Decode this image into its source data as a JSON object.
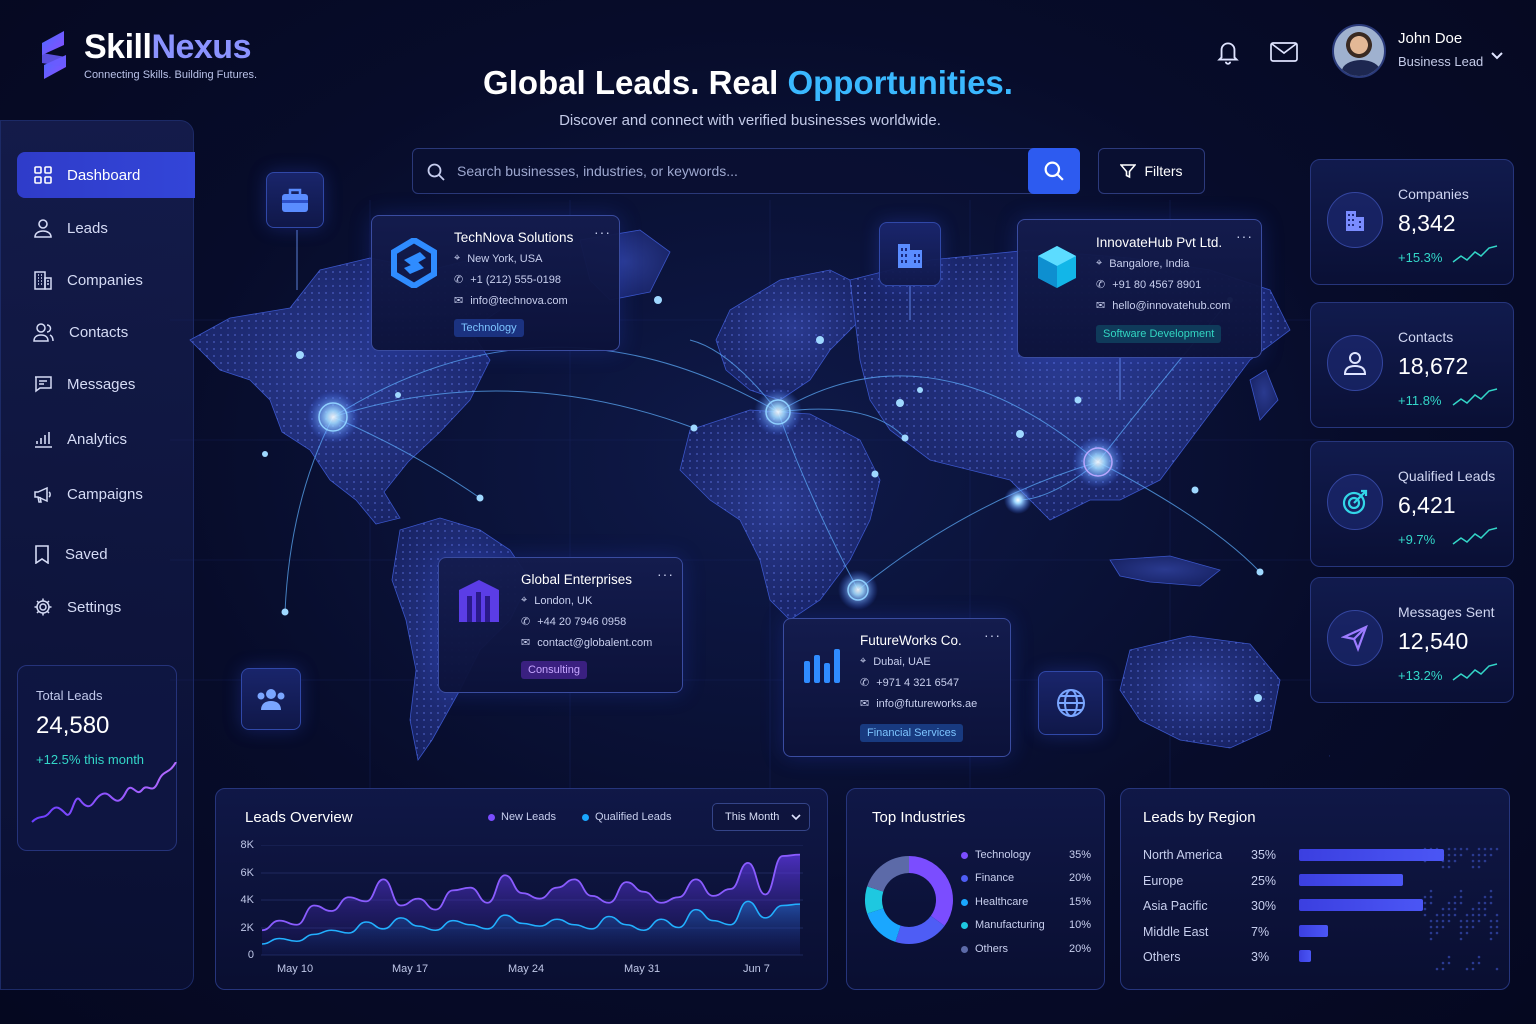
{
  "brand": {
    "name_part1": "Skill",
    "name_part2": "Nexus",
    "tagline": "Connecting Skills. Building Futures."
  },
  "hero": {
    "title_main": "Global Leads. Real ",
    "title_accent": "Opportunities.",
    "subtitle": "Discover and connect with verified businesses worldwide."
  },
  "user": {
    "name": "John Doe",
    "role": "Business Lead"
  },
  "search": {
    "placeholder": "Search businesses, industries, or keywords...",
    "filters_label": "Filters"
  },
  "sidebar": {
    "items": [
      {
        "label": "Dashboard",
        "icon": "grid-icon",
        "active": true
      },
      {
        "label": "Leads",
        "icon": "user-icon"
      },
      {
        "label": "Companies",
        "icon": "building-icon"
      },
      {
        "label": "Contacts",
        "icon": "contacts-icon"
      },
      {
        "label": "Messages",
        "icon": "message-icon"
      },
      {
        "label": "Analytics",
        "icon": "bar-chart-icon"
      },
      {
        "label": "Campaigns",
        "icon": "megaphone-icon"
      },
      {
        "label": "Saved",
        "icon": "bookmark-icon"
      },
      {
        "label": "Settings",
        "icon": "gear-icon"
      }
    ],
    "total_leads": {
      "label": "Total Leads",
      "value": "24,580",
      "delta": "+12.5% this month"
    }
  },
  "companies": [
    {
      "name": "TechNova Solutions",
      "location": "New York, USA",
      "phone": "+1 (212) 555-0198",
      "email": "info@technova.com",
      "tag": "Technology"
    },
    {
      "name": "InnovateHub Pvt Ltd.",
      "location": "Bangalore, India",
      "phone": "+91 80 4567 8901",
      "email": "hello@innovatehub.com",
      "tag": "Software Development"
    },
    {
      "name": "Global Enterprises",
      "location": "London, UK",
      "phone": "+44 20 7946 0958",
      "email": "contact@globalent.com",
      "tag": "Consulting"
    },
    {
      "name": "FutureWorks Co.",
      "location": "Dubai, UAE",
      "phone": "+971 4 321 6547",
      "email": "info@futureworks.ae",
      "tag": "Financial Services"
    }
  ],
  "stats": [
    {
      "label": "Companies",
      "value": "8,342",
      "delta": "+15.3%",
      "icon": "building-icon"
    },
    {
      "label": "Contacts",
      "value": "18,672",
      "delta": "+11.8%",
      "icon": "user-icon"
    },
    {
      "label": "Qualified Leads",
      "value": "6,421",
      "delta": "+9.7%",
      "icon": "target-icon"
    },
    {
      "label": "Messages Sent",
      "value": "12,540",
      "delta": "+13.2%",
      "icon": "send-icon"
    }
  ],
  "leads_overview": {
    "title": "Leads Overview",
    "legend": [
      "New Leads",
      "Qualified Leads"
    ],
    "range": "This Month",
    "y_ticks": [
      "8K",
      "6K",
      "4K",
      "2K",
      "0"
    ],
    "x_ticks": [
      "May 10",
      "May 17",
      "May 24",
      "May 31",
      "Jun 7"
    ]
  },
  "chart_data": {
    "type": "area",
    "ylim": [
      0,
      8000
    ],
    "x": [
      "May 8",
      "May 9",
      "May 10",
      "May 11",
      "May 12",
      "May 13",
      "May 14",
      "May 15",
      "May 16",
      "May 17",
      "May 18",
      "May 19",
      "May 20",
      "May 21",
      "May 22",
      "May 23",
      "May 24",
      "May 25",
      "May 26",
      "May 27",
      "May 28",
      "May 29",
      "May 30",
      "May 31",
      "Jun 1",
      "Jun 2",
      "Jun 3",
      "Jun 4",
      "Jun 5",
      "Jun 6",
      "Jun 7",
      "Jun 8"
    ],
    "series": [
      {
        "name": "New Leads",
        "values": [
          1800,
          2500,
          2200,
          3600,
          3200,
          4200,
          3900,
          5500,
          3600,
          4100,
          3300,
          4700,
          4900,
          3800,
          5800,
          4500,
          4100,
          4900,
          5500,
          4300,
          3800,
          5300,
          4600,
          3800,
          4200,
          5500,
          4300,
          4800,
          6700,
          4400,
          7200,
          7300
        ]
      },
      {
        "name": "Qualified Leads",
        "values": [
          800,
          1200,
          1000,
          1500,
          1800,
          1600,
          2400,
          1900,
          2700,
          2100,
          1800,
          2500,
          2200,
          1900,
          2900,
          2300,
          2100,
          2600,
          2200,
          1900,
          2800,
          2200,
          1800,
          2600,
          2000,
          3300,
          2500,
          2200,
          3900,
          2700,
          3600,
          3700
        ]
      }
    ]
  },
  "industries": {
    "title": "Top Industries",
    "items": [
      {
        "label": "Technology",
        "pct": "35%",
        "value": 35,
        "color": "#7b4dff"
      },
      {
        "label": "Finance",
        "pct": "20%",
        "value": 20,
        "color": "#4e5df5"
      },
      {
        "label": "Healthcare",
        "pct": "15%",
        "value": 15,
        "color": "#1aa7ff"
      },
      {
        "label": "Manufacturing",
        "pct": "10%",
        "value": 10,
        "color": "#1ec8e0"
      },
      {
        "label": "Others",
        "pct": "20%",
        "value": 20,
        "color": "#5c6aa8"
      }
    ]
  },
  "regions": {
    "title": "Leads by Region",
    "items": [
      {
        "label": "North America",
        "pct": "35%",
        "value": 35
      },
      {
        "label": "Europe",
        "pct": "25%",
        "value": 25
      },
      {
        "label": "Asia Pacific",
        "pct": "30%",
        "value": 30
      },
      {
        "label": "Middle East",
        "pct": "7%",
        "value": 7
      },
      {
        "label": "Others",
        "pct": "3%",
        "value": 3
      }
    ]
  }
}
